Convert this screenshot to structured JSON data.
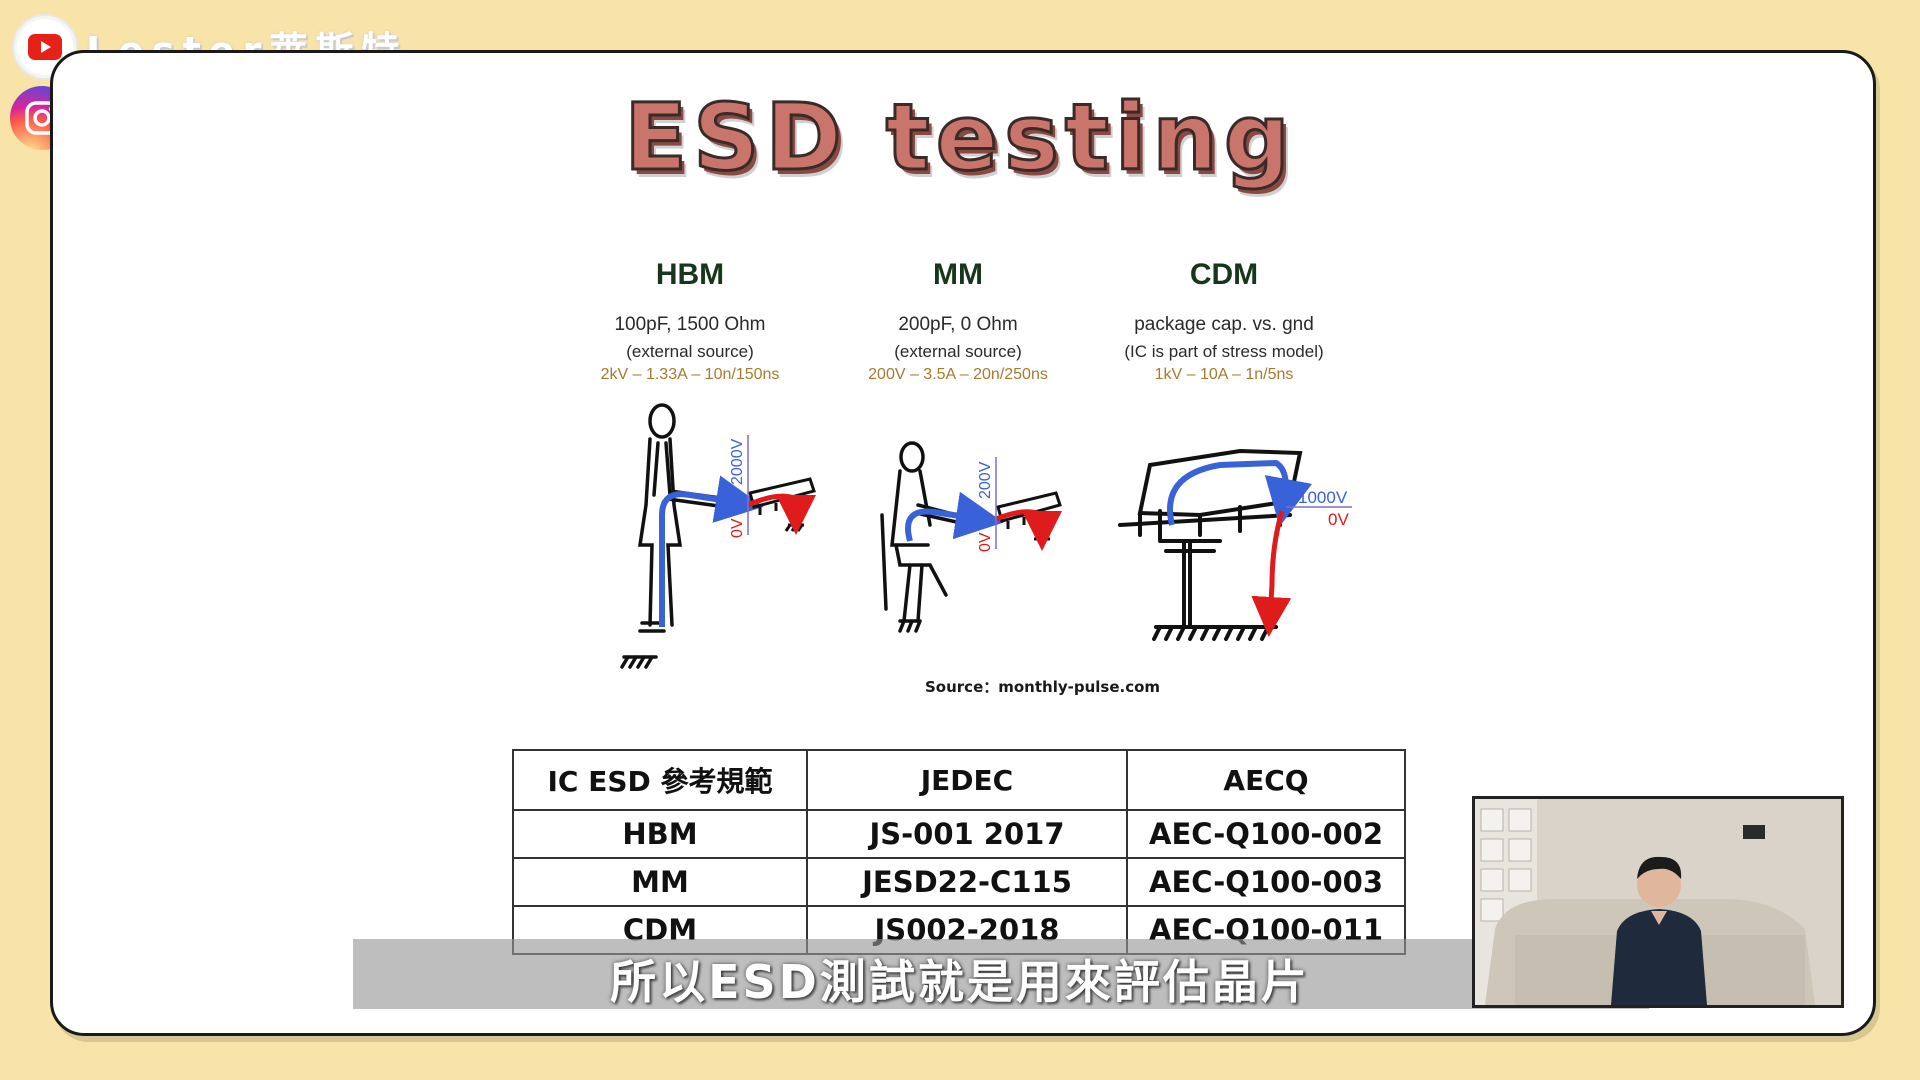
{
  "channel": {
    "name": "Lester萊斯特",
    "youtube_icon": "youtube-icon",
    "instagram_icon": "instagram-icon"
  },
  "slide": {
    "title": "ESD testing",
    "models": [
      {
        "name": "HBM",
        "line1": "100pF, 1500 Ohm",
        "line2": "(external source)",
        "line3": "2kV – 1.33A – 10n/150ns",
        "labels": {
          "high": "2000V",
          "low": "0V"
        }
      },
      {
        "name": "MM",
        "line1": "200pF, 0 Ohm",
        "line2": "(external source)",
        "line3": "200V – 3.5A – 20n/250ns",
        "labels": {
          "high": "200V",
          "low": "0V"
        }
      },
      {
        "name": "CDM",
        "line1": "package cap. vs. gnd",
        "line2": "(IC is part of stress model)",
        "line3": "1kV – 10A – 1n/5ns",
        "labels": {
          "high": "1000V",
          "low": "0V"
        }
      }
    ],
    "source": "Source：monthly-pulse.com",
    "table": {
      "headers": [
        "IC ESD 參考規範",
        "JEDEC",
        "AECQ"
      ],
      "rows": [
        [
          "HBM",
          "JS-001 2017",
          "AEC-Q100-002"
        ],
        [
          "MM",
          "JESD22-C115",
          "AEC-Q100-003"
        ],
        [
          "CDM",
          "JS002-2018",
          "AEC-Q100-011"
        ]
      ]
    }
  },
  "subtitle": "所以ESD測試就是用來評估晶片",
  "colors": {
    "background": "#f8e3a8",
    "current_blue": "#3a62d8",
    "discharge_red": "#e01b1b",
    "title": "#c9756c"
  }
}
